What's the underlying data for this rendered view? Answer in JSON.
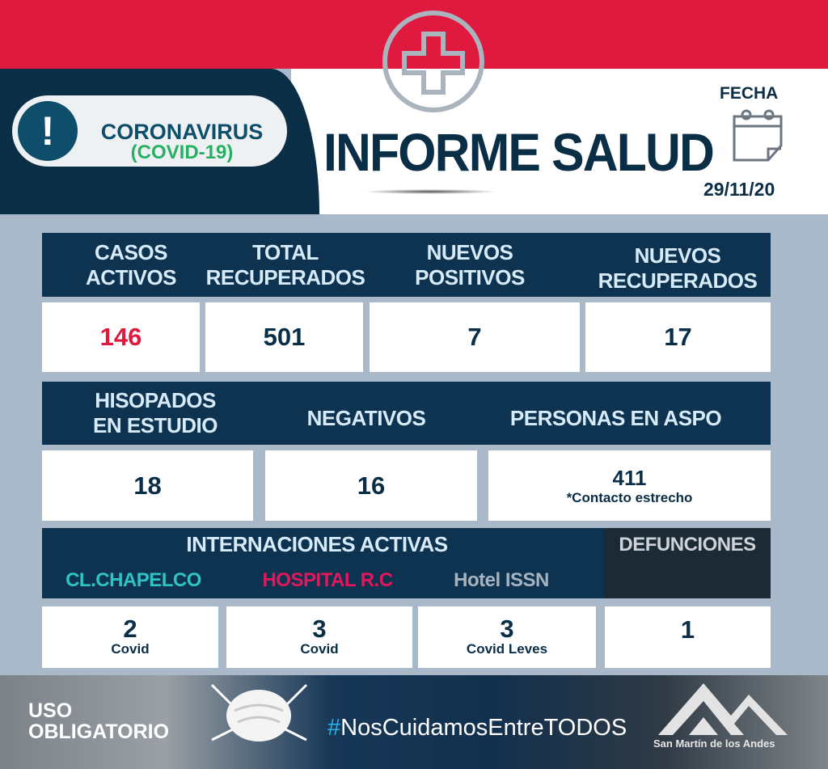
{
  "header": {
    "badge_line1": "CORONAVIRUS",
    "badge_line2": "(COVID-19)",
    "title": "INFORME SALUD",
    "fecha_label": "FECHA",
    "date": "29/11/20"
  },
  "row1": [
    {
      "label": "CASOS ACTIVOS",
      "value": "146"
    },
    {
      "label": "TOTAL RECUPERADOS",
      "value": "501"
    },
    {
      "label": "NUEVOS POSITIVOS",
      "value": "7"
    },
    {
      "label": "NUEVOS RECUPERADOS",
      "value": "17"
    }
  ],
  "row2": [
    {
      "label": "HISOPADOS EN ESTUDIO",
      "value": "18"
    },
    {
      "label": "NEGATIVOS",
      "value": "16"
    },
    {
      "label": "PERSONAS EN ASPO",
      "value": "411",
      "note": "*Contacto estrecho"
    }
  ],
  "row3": {
    "title": "INTERNACIONES ACTIVAS",
    "defunciones_label": "DEFUNCIONES",
    "defunciones_value": "1",
    "items": [
      {
        "label": "CL.CHAPELCO",
        "value": "2",
        "note": "Covid",
        "color": "#2ec4c4"
      },
      {
        "label": "HOSPITAL R.C",
        "value": "3",
        "note": "Covid",
        "color": "#e5175c"
      },
      {
        "label": "Hotel ISSN",
        "value": "3",
        "note": "Covid Leves",
        "color": "#a7b3bf"
      }
    ]
  },
  "footer": {
    "uso_line1": "USO",
    "uso_line2": "OBLIGATORIO",
    "hashtag_symbol": "#",
    "hashtag_text": "NosCuidamosEntreTODOS",
    "logo_text": "San Martín de los Andes"
  },
  "colors": {
    "red": "#e0193f",
    "navy": "#0b2e47",
    "active_cases": "#e0193f"
  }
}
